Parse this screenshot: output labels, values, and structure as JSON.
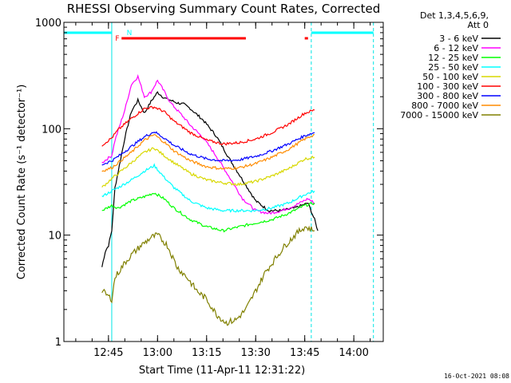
{
  "chart_data": {
    "type": "line",
    "title": "RHESSI Observing Summary Count Rates, Corrected",
    "xlabel": "Start Time (11-Apr-11 12:31:22)",
    "ylabel": "Corrected Count Rate (s⁻¹ detector⁻¹)",
    "y_scale": "log",
    "ylim": [
      1,
      1000
    ],
    "xlim": [
      "12:31:22",
      "14:09:00"
    ],
    "x_ticks": [
      "12:45",
      "13:00",
      "13:15",
      "13:30",
      "13:45",
      "14:00"
    ],
    "y_ticks": [
      "1",
      "10",
      "100",
      "1000"
    ],
    "grid": false,
    "legend_position": "right",
    "legend_header": [
      "Det 1,3,4,5,6,9,",
      "Att 0"
    ],
    "timestamp": "16-Oct-2021 08:08",
    "flags": [
      {
        "label": "F",
        "color": "#ff0000",
        "segments": [
          [
            "12:49",
            "13:27"
          ],
          [
            "13:45",
            "13:46"
          ]
        ]
      },
      {
        "label": "N",
        "color": "#00ffff",
        "segments": [
          [
            "12:31:22",
            "12:46"
          ],
          [
            "13:47",
            "14:06"
          ]
        ]
      }
    ],
    "night_boundaries": [
      "12:31:22",
      "12:46",
      "13:47",
      "14:06"
    ],
    "series": [
      {
        "name": "3 - 6 keV",
        "color": "#000000",
        "x": [
          "12:43",
          "12:44",
          "12:45",
          "12:46",
          "12:47",
          "12:50",
          "12:52",
          "12:54",
          "12:56",
          "12:58",
          "13:00",
          "13:02",
          "13:04",
          "13:06",
          "13:08",
          "13:10",
          "13:14",
          "13:18",
          "13:22",
          "13:26",
          "13:30",
          "13:34",
          "13:38",
          "13:42",
          "13:46",
          "13:48",
          "13:49"
        ],
        "y": [
          5,
          7,
          8,
          11,
          28,
          82,
          145,
          185,
          140,
          180,
          220,
          195,
          185,
          175,
          170,
          155,
          120,
          85,
          52,
          33,
          21,
          17,
          17,
          18,
          20,
          14,
          11
        ]
      },
      {
        "name": "6 - 12 keV",
        "color": "#ff00ff",
        "x": [
          "12:43",
          "12:46",
          "12:47",
          "12:50",
          "12:52",
          "12:54",
          "12:56",
          "12:58",
          "13:00",
          "13:02",
          "13:04",
          "13:06",
          "13:08",
          "13:10",
          "13:14",
          "13:18",
          "13:22",
          "13:26",
          "13:30",
          "13:34",
          "13:38",
          "13:42",
          "13:46",
          "13:48"
        ],
        "y": [
          48,
          56,
          78,
          150,
          260,
          310,
          200,
          220,
          285,
          225,
          175,
          150,
          128,
          108,
          82,
          55,
          35,
          22,
          17,
          16,
          17,
          19,
          22,
          20
        ]
      },
      {
        "name": "12 - 25 keV",
        "color": "#00ff00",
        "x": [
          "12:43",
          "12:46",
          "12:48",
          "12:52",
          "12:56",
          "12:59",
          "13:02",
          "13:05",
          "13:10",
          "13:15",
          "13:20",
          "13:25",
          "13:30",
          "13:35",
          "13:40",
          "13:45",
          "13:48"
        ],
        "y": [
          17,
          19,
          18,
          21,
          23,
          25,
          22,
          18,
          14,
          12,
          11,
          12,
          13,
          14,
          16,
          19,
          20
        ]
      },
      {
        "name": "25 - 50 keV",
        "color": "#00ffff",
        "x": [
          "12:43",
          "12:46",
          "12:48",
          "12:52",
          "12:56",
          "12:59",
          "13:02",
          "13:05",
          "13:10",
          "13:15",
          "13:20",
          "13:25",
          "13:30",
          "13:35",
          "13:40",
          "13:45",
          "13:48"
        ],
        "y": [
          23,
          26,
          28,
          33,
          40,
          45,
          35,
          28,
          21,
          18,
          17,
          17,
          17,
          18,
          20,
          24,
          26
        ]
      },
      {
        "name": "50 - 100 keV",
        "color": "#d8d800",
        "x": [
          "12:43",
          "12:46",
          "12:48",
          "12:52",
          "12:56",
          "12:59",
          "13:02",
          "13:05",
          "13:10",
          "13:15",
          "13:20",
          "13:25",
          "13:30",
          "13:35",
          "13:40",
          "13:45",
          "13:48"
        ],
        "y": [
          28,
          34,
          38,
          48,
          60,
          66,
          56,
          48,
          38,
          33,
          31,
          30,
          32,
          36,
          42,
          52,
          54
        ]
      },
      {
        "name": "100 - 300 keV",
        "color": "#ff0000",
        "x": [
          "12:43",
          "12:46",
          "12:48",
          "12:52",
          "12:56",
          "12:59",
          "13:02",
          "13:05",
          "13:10",
          "13:15",
          "13:20",
          "13:25",
          "13:30",
          "13:35",
          "13:40",
          "13:45",
          "13:48"
        ],
        "y": [
          70,
          82,
          98,
          125,
          155,
          160,
          145,
          118,
          92,
          78,
          72,
          74,
          80,
          92,
          110,
          140,
          150
        ]
      },
      {
        "name": "300 - 800 keV",
        "color": "#0000ff",
        "x": [
          "12:43",
          "12:46",
          "12:48",
          "12:52",
          "12:56",
          "12:59",
          "13:02",
          "13:05",
          "13:10",
          "13:15",
          "13:20",
          "13:25",
          "13:30",
          "13:35",
          "13:40",
          "13:45",
          "13:48"
        ],
        "y": [
          46,
          50,
          55,
          68,
          84,
          94,
          82,
          70,
          58,
          52,
          50,
          51,
          55,
          62,
          72,
          86,
          92
        ]
      },
      {
        "name": "800 - 7000 keV",
        "color": "#ff8c00",
        "x": [
          "12:43",
          "12:46",
          "12:48",
          "12:52",
          "12:56",
          "12:59",
          "13:02",
          "13:05",
          "13:10",
          "13:15",
          "13:20",
          "13:25",
          "13:30",
          "13:35",
          "13:40",
          "13:45",
          "13:48"
        ],
        "y": [
          40,
          43,
          48,
          60,
          78,
          88,
          75,
          62,
          50,
          44,
          42,
          43,
          47,
          54,
          64,
          80,
          88
        ]
      },
      {
        "name": "7000 - 15000 keV",
        "color": "#808000",
        "x": [
          "12:43",
          "12:46",
          "12:47",
          "12:50",
          "12:52",
          "12:55",
          "12:58",
          "13:00",
          "13:03",
          "13:06",
          "13:09",
          "13:12",
          "13:15",
          "13:18",
          "13:21",
          "13:24",
          "13:27",
          "13:30",
          "13:33",
          "13:36",
          "13:39",
          "13:42",
          "13:45",
          "13:48"
        ],
        "y": [
          3,
          2.5,
          4,
          5.5,
          6.5,
          8,
          9.5,
          10,
          8,
          5,
          4,
          3,
          2.5,
          1.8,
          1.5,
          1.6,
          2,
          3,
          4.5,
          6,
          8,
          10,
          12,
          11
        ]
      }
    ]
  }
}
